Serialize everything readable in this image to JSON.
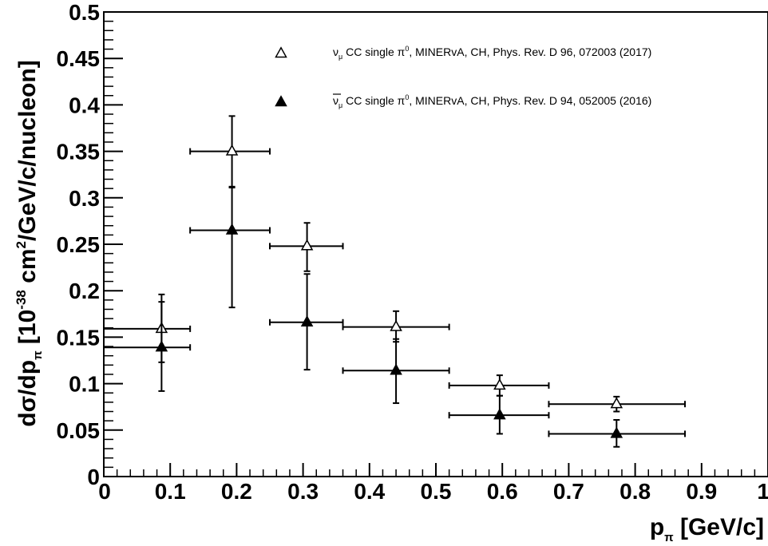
{
  "chart_data": {
    "type": "scatter",
    "title": "",
    "xlabel": "p_π [GeV/c]",
    "xlabel_main": "p",
    "xlabel_sub": "π",
    "xlabel_tail": " [GeV/c]",
    "ylabel": "dσ/dp_π [10^-38 cm^2/GeV/c/nucleon]",
    "ylabel_main": "dσ/dp",
    "ylabel_sub": "π",
    "ylabel_mid": " [10",
    "ylabel_exp": "-38",
    "ylabel_mid2": " cm",
    "ylabel_exp2": "2",
    "ylabel_tail": "/GeV/c/nucleon]",
    "xlim": [
      0,
      1
    ],
    "ylim": [
      0,
      0.5
    ],
    "xticks": [
      0,
      0.1,
      0.2,
      0.3,
      0.4,
      0.5,
      0.6,
      0.7,
      0.8,
      0.9,
      1
    ],
    "xtick_labels": [
      "0",
      "0.1",
      "0.2",
      "0.3",
      "0.4",
      "0.5",
      "0.6",
      "0.7",
      "0.8",
      "0.9",
      "1"
    ],
    "yticks": [
      0,
      0.05,
      0.1,
      0.15,
      0.2,
      0.25,
      0.3,
      0.35,
      0.4,
      0.45,
      0.5
    ],
    "ytick_labels": [
      "0",
      "0.05",
      "0.1",
      "0.15",
      "0.2",
      "0.25",
      "0.3",
      "0.35",
      "0.4",
      "0.45",
      "0.5"
    ],
    "grid": false,
    "legend_position": "top-right",
    "series": [
      {
        "name": "ν_μ CC single π^0, MINERvA, CH, Phys. Rev. D 96, 072003 (2017)",
        "legend": {
          "sym": "ν",
          "sub": "μ",
          "text1": " CC single π",
          "sup": "0",
          "text2": ", MINERvA, CH, Phys. Rev. D 96, 072003 (2017)"
        },
        "marker": "open-triangle",
        "color": "#000000",
        "points": [
          {
            "x": 0.087,
            "xlo": 0.0,
            "xhi": 0.13,
            "y": 0.159,
            "ylo": 0.123,
            "yhi": 0.196
          },
          {
            "x": 0.193,
            "xlo": 0.13,
            "xhi": 0.25,
            "y": 0.35,
            "ylo": 0.311,
            "yhi": 0.388
          },
          {
            "x": 0.306,
            "xlo": 0.25,
            "xhi": 0.36,
            "y": 0.248,
            "ylo": 0.221,
            "yhi": 0.273
          },
          {
            "x": 0.44,
            "xlo": 0.36,
            "xhi": 0.52,
            "y": 0.161,
            "ylo": 0.145,
            "yhi": 0.178
          },
          {
            "x": 0.596,
            "xlo": 0.52,
            "xhi": 0.67,
            "y": 0.098,
            "ylo": 0.087,
            "yhi": 0.109
          },
          {
            "x": 0.772,
            "xlo": 0.67,
            "xhi": 0.875,
            "y": 0.078,
            "ylo": 0.07,
            "yhi": 0.086
          }
        ]
      },
      {
        "name": "ν̄_μ CC single π^0, MINERvA, CH, Phys. Rev. D 94, 052005 (2016)",
        "legend": {
          "sym": "ν",
          "sub": "μ",
          "text1": " CC single π",
          "sup": "0",
          "text2": ", MINERvA, CH, Phys. Rev. D 94, 052005 (2016)"
        },
        "marker": "filled-triangle",
        "color": "#000000",
        "points": [
          {
            "x": 0.087,
            "xlo": 0.0,
            "xhi": 0.13,
            "y": 0.139,
            "ylo": 0.092,
            "yhi": 0.188
          },
          {
            "x": 0.193,
            "xlo": 0.13,
            "xhi": 0.25,
            "y": 0.265,
            "ylo": 0.182,
            "yhi": 0.312
          },
          {
            "x": 0.306,
            "xlo": 0.25,
            "xhi": 0.36,
            "y": 0.166,
            "ylo": 0.115,
            "yhi": 0.218
          },
          {
            "x": 0.44,
            "xlo": 0.36,
            "xhi": 0.52,
            "y": 0.114,
            "ylo": 0.079,
            "yhi": 0.148
          },
          {
            "x": 0.596,
            "xlo": 0.52,
            "xhi": 0.67,
            "y": 0.066,
            "ylo": 0.046,
            "yhi": 0.087
          },
          {
            "x": 0.772,
            "xlo": 0.67,
            "xhi": 0.875,
            "y": 0.046,
            "ylo": 0.032,
            "yhi": 0.061
          }
        ]
      }
    ]
  }
}
